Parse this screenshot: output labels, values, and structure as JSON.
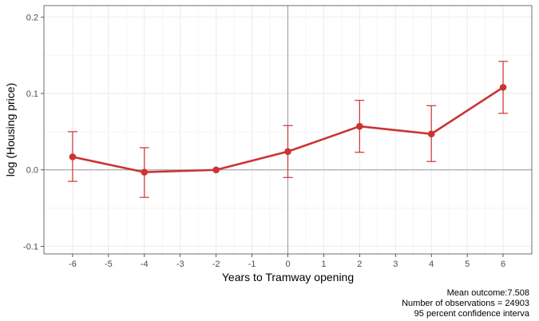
{
  "chart_data": {
    "type": "line",
    "xlabel": "Years to Tramway opening",
    "ylabel": "log (Housing price)",
    "xlim": [
      -6.8,
      6.8
    ],
    "ylim": [
      -0.11,
      0.215
    ],
    "x_ticks": [
      -6,
      -5,
      -4,
      -3,
      -2,
      -1,
      0,
      1,
      2,
      3,
      4,
      5,
      6
    ],
    "x_tick_labels": [
      "-6",
      "-5",
      "-4",
      "-3",
      "-2",
      "-1",
      "0",
      "1",
      "2",
      "3",
      "4",
      "5",
      "6"
    ],
    "y_ticks": [
      -0.1,
      0.0,
      0.1,
      0.2
    ],
    "y_tick_labels": [
      "-0.1",
      "0.0",
      "0.1",
      "0.2"
    ],
    "grid": true,
    "reference_lines": {
      "x": 0,
      "y": 0
    },
    "series": [
      {
        "x": [
          -6,
          -4,
          -2,
          0,
          2,
          4,
          6
        ],
        "y": [
          0.017,
          -0.003,
          0.0,
          0.024,
          0.057,
          0.047,
          0.108
        ],
        "ci_low": [
          -0.015,
          -0.036,
          null,
          -0.01,
          0.023,
          0.011,
          0.074
        ],
        "ci_high": [
          0.05,
          0.029,
          null,
          0.058,
          0.091,
          0.084,
          0.142
        ]
      }
    ],
    "colors": {
      "series": "#cc3333",
      "grid": "#ebebeb",
      "reference": "#999999",
      "border": "#333333"
    }
  },
  "caption": {
    "line1": "Mean outcome:7.508",
    "line2": "Number of observations = 24903",
    "line3": "95 percent confidence interva"
  }
}
